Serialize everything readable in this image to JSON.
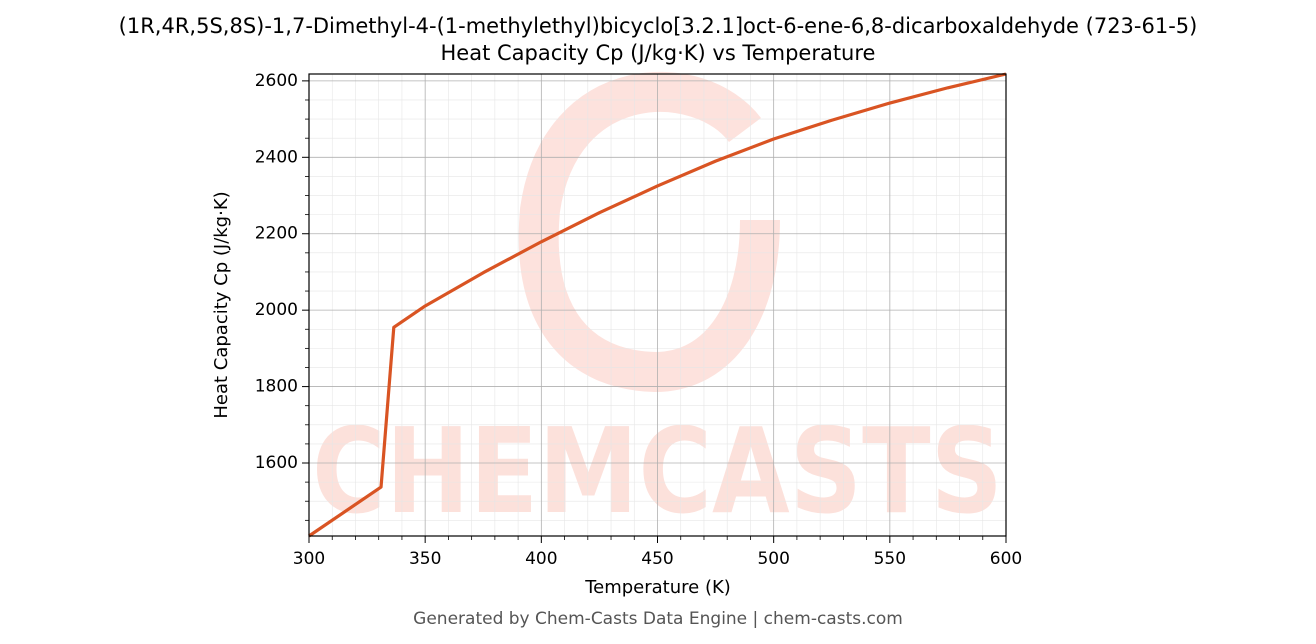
{
  "chart_data": {
    "type": "line",
    "title": "(1R,4R,5S,8S)-1,7-Dimethyl-4-(1-methylethyl)bicyclo[3.2.1]oct-6-ene-6,8-dicarboxaldehyde (723-61-5)",
    "subtitle": "Heat Capacity Cp (J/kg·K) vs Temperature",
    "x_label": "Temperature (K)",
    "y_label": "Heat Capacity Cp (J/kg·K)",
    "footer": "Generated by Chem-Casts Data Engine | chem-casts.com",
    "watermark": "CHEMCASTS",
    "x": [
      300,
      331,
      336.5,
      350,
      375,
      400,
      425,
      450,
      475,
      500,
      525,
      550,
      575,
      600
    ],
    "series": [
      {
        "name": "Cp",
        "color": "#d95423",
        "values": [
          1409,
          1537,
          1955,
          2011,
          2098,
          2179,
          2255,
          2325,
          2390,
          2448,
          2497,
          2542,
          2582,
          2618
        ]
      }
    ],
    "xlim": [
      300,
      600
    ],
    "ylim": [
      1409,
      2618
    ],
    "xticks": [
      300,
      350,
      400,
      450,
      500,
      550,
      600
    ],
    "yticks": [
      1600,
      1800,
      2000,
      2200,
      2400,
      2600
    ],
    "grid": true,
    "minor_grid": true
  }
}
